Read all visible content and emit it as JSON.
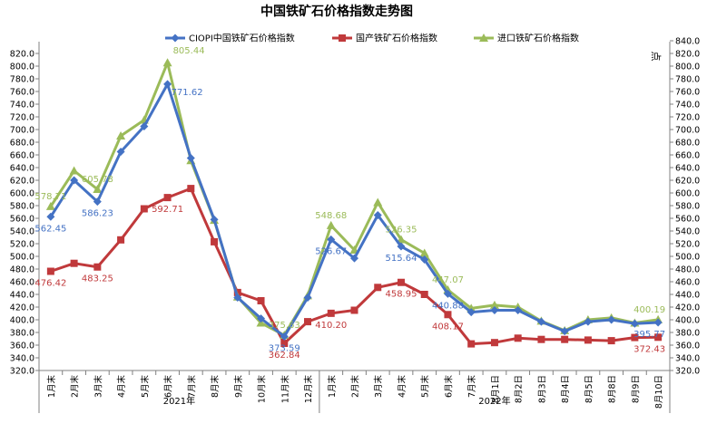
{
  "chart_data": {
    "type": "line",
    "title": "中国铁矿石价格指数走势图",
    "unit_label": "点",
    "categories": [
      "1月末",
      "2月末",
      "3月末",
      "4月末",
      "5月末",
      "6月末",
      "7月末",
      "8月末",
      "9月末",
      "10月末",
      "11月末",
      "12月末",
      "1月末",
      "2月末",
      "3月末",
      "4月末",
      "5月末",
      "6月末",
      "7月末",
      "8月1日",
      "8月2日",
      "8月3日",
      "8月4日",
      "8月5日",
      "8月8日",
      "8月9日",
      "8月10日"
    ],
    "year_groups": [
      {
        "label": "2021年",
        "count": 12
      },
      {
        "label": "2022年",
        "count": 15
      }
    ],
    "ylim": [
      320,
      820
    ],
    "ytick_step": 20,
    "ytick_labels_left": [
      "320.0",
      "340.0",
      "360.0",
      "380.0",
      "400.0",
      "420.0",
      "440.0",
      "460.0",
      "480.0",
      "500.0",
      "520.0",
      "540.0",
      "560.0",
      "580.0",
      "600.0",
      "620.0",
      "640.0",
      "660.0",
      "680.0",
      "700.0",
      "720.0",
      "740.0",
      "760.0",
      "780.0",
      "800.0",
      "820.0"
    ],
    "ytick_labels_right": [
      "320.0",
      "340.0",
      "360.0",
      "380.0",
      "400.0",
      "420.0",
      "440.0",
      "460.0",
      "480.0",
      "500.0",
      "520.0",
      "540.0",
      "560.0",
      "580.0",
      "600.0",
      "620.0",
      "640.0",
      "660.0",
      "680.0",
      "700.0",
      "720.0",
      "740.0",
      "760.0",
      "780.0",
      "800.0",
      "820.0",
      "840.0"
    ],
    "grid": false,
    "legend_position": "top",
    "series": [
      {
        "name": "CIOPI中国铁矿石价格指数",
        "color": "#4472C4",
        "marker": "diamond",
        "values": [
          562.45,
          620,
          586.23,
          665,
          705,
          771.62,
          655,
          558,
          435,
          402,
          373.59,
          435,
          526.67,
          497,
          565,
          515.64,
          495,
          440.88,
          412,
          415,
          415,
          397,
          382,
          397,
          400,
          394,
          395.77
        ]
      },
      {
        "name": "国产铁矿石价格指数",
        "color": "#C0393B",
        "marker": "square",
        "values": [
          476.42,
          489,
          483.25,
          526,
          575,
          592.71,
          607,
          523,
          443,
          430,
          362.84,
          397,
          410.2,
          415,
          451,
          458.95,
          440,
          408.17,
          362,
          364,
          371,
          369,
          369,
          368,
          367,
          372,
          372.43
        ]
      },
      {
        "name": "进口铁矿石价格指数",
        "color": "#9BBB59",
        "marker": "triangle",
        "values": [
          578.71,
          635,
          605.78,
          690,
          715,
          805.44,
          651,
          557,
          436,
          395,
          375.63,
          438,
          548.68,
          510,
          585,
          526.35,
          505,
          447.07,
          418,
          423,
          420,
          398,
          383,
          400,
          403,
          395,
          400.19
        ]
      }
    ],
    "data_labels": [
      {
        "series": 0,
        "index": 0,
        "text": "562.45"
      },
      {
        "series": 0,
        "index": 2,
        "text": "586.23"
      },
      {
        "series": 0,
        "index": 5,
        "text": "771.62"
      },
      {
        "series": 0,
        "index": 10,
        "text": "373.59"
      },
      {
        "series": 0,
        "index": 12,
        "text": "526.67"
      },
      {
        "series": 0,
        "index": 15,
        "text": "515.64"
      },
      {
        "series": 0,
        "index": 17,
        "text": "440.88"
      },
      {
        "series": 0,
        "index": 26,
        "text": "395.77"
      },
      {
        "series": 1,
        "index": 0,
        "text": "476.42"
      },
      {
        "series": 1,
        "index": 2,
        "text": "483.25"
      },
      {
        "series": 1,
        "index": 5,
        "text": "592.71"
      },
      {
        "series": 1,
        "index": 10,
        "text": "362.84"
      },
      {
        "series": 1,
        "index": 12,
        "text": "410.20"
      },
      {
        "series": 1,
        "index": 15,
        "text": "458.95"
      },
      {
        "series": 1,
        "index": 17,
        "text": "408.17"
      },
      {
        "series": 1,
        "index": 26,
        "text": "372.43"
      },
      {
        "series": 2,
        "index": 0,
        "text": "578.71"
      },
      {
        "series": 2,
        "index": 2,
        "text": "605.78"
      },
      {
        "series": 2,
        "index": 5,
        "text": "805.44"
      },
      {
        "series": 2,
        "index": 10,
        "text": "375.63"
      },
      {
        "series": 2,
        "index": 12,
        "text": "548.68"
      },
      {
        "series": 2,
        "index": 15,
        "text": "526.35"
      },
      {
        "series": 2,
        "index": 17,
        "text": "447.07"
      },
      {
        "series": 2,
        "index": 26,
        "text": "400.19"
      }
    ]
  }
}
